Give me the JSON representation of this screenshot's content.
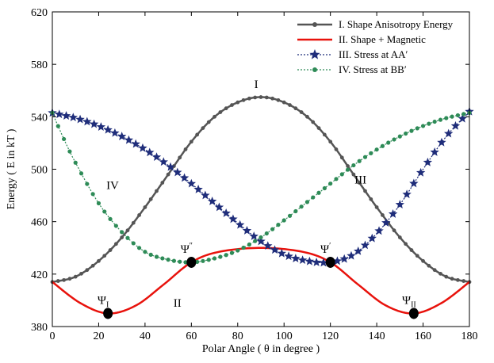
{
  "chart_data": {
    "type": "line",
    "xlabel": "Polar Angle ( θ in degree )",
    "ylabel": "Energy ( E in kT )",
    "xlim": [
      0,
      180
    ],
    "ylim": [
      380,
      620
    ],
    "xticks": [
      0,
      20,
      40,
      60,
      80,
      100,
      120,
      140,
      160,
      180
    ],
    "yticks": [
      380,
      420,
      460,
      500,
      540,
      580,
      620
    ],
    "grid": false,
    "legend_position": "top-right",
    "series": [
      {
        "name": "I.  Shape Anisotropy Energy",
        "color": "#555555",
        "style": "line-dot",
        "x": [
          0,
          10,
          20,
          30,
          40,
          50,
          60,
          70,
          80,
          90,
          100,
          110,
          120,
          130,
          140,
          150,
          160,
          170,
          180
        ],
        "y": [
          414,
          418,
          430,
          448,
          471,
          496,
          521,
          540,
          551,
          555,
          551,
          540,
          521,
          496,
          471,
          448,
          430,
          418,
          414
        ]
      },
      {
        "name": "II. Shape + Magnetic",
        "color": "#e8120c",
        "style": "solid",
        "x": [
          0,
          12,
          24,
          36,
          48,
          60,
          72,
          90,
          108,
          120,
          132,
          144,
          156,
          168,
          180
        ],
        "y": [
          414,
          398,
          390,
          396,
          412,
          429,
          437,
          440,
          437,
          429,
          412,
          396,
          390,
          398,
          414
        ]
      },
      {
        "name": "III. Stress at AA′",
        "color": "#1f2d7a",
        "style": "dotted-star",
        "x": [
          0,
          10,
          20,
          30,
          40,
          50,
          60,
          70,
          80,
          90,
          100,
          110,
          120,
          130,
          140,
          150,
          160,
          170,
          180
        ],
        "y": [
          543,
          539,
          533,
          525,
          515,
          503,
          489,
          474,
          459,
          445,
          435,
          430,
          429,
          435,
          451,
          473,
          500,
          525,
          544
        ]
      },
      {
        "name": "IV. Stress at BB′",
        "color": "#2e8b57",
        "style": "dotted-circle",
        "x": [
          0,
          5,
          10,
          20,
          30,
          40,
          50,
          60,
          70,
          80,
          90,
          100,
          110,
          120,
          130,
          140,
          150,
          160,
          170,
          180
        ],
        "y": [
          543,
          523,
          505,
          474,
          452,
          437,
          431,
          429,
          432,
          438,
          448,
          461,
          475,
          489,
          503,
          515,
          525,
          533,
          539,
          543
        ]
      }
    ],
    "points": [
      {
        "label": "Ψ",
        "sub": "I",
        "x": 24,
        "y": 390
      },
      {
        "label": "Ψ",
        "sub": "II",
        "x": 156,
        "y": 390
      },
      {
        "label": "Ψ",
        "sub": "″",
        "x": 60,
        "y": 429
      },
      {
        "label": "Ψ",
        "sub": "′",
        "x": 120,
        "y": 429
      }
    ],
    "annotations": [
      {
        "text": "I",
        "x": 88,
        "y": 562
      },
      {
        "text": "II",
        "x": 54,
        "y": 395
      },
      {
        "text": "III",
        "x": 133,
        "y": 489
      },
      {
        "text": "IV",
        "x": 26,
        "y": 485
      }
    ]
  }
}
